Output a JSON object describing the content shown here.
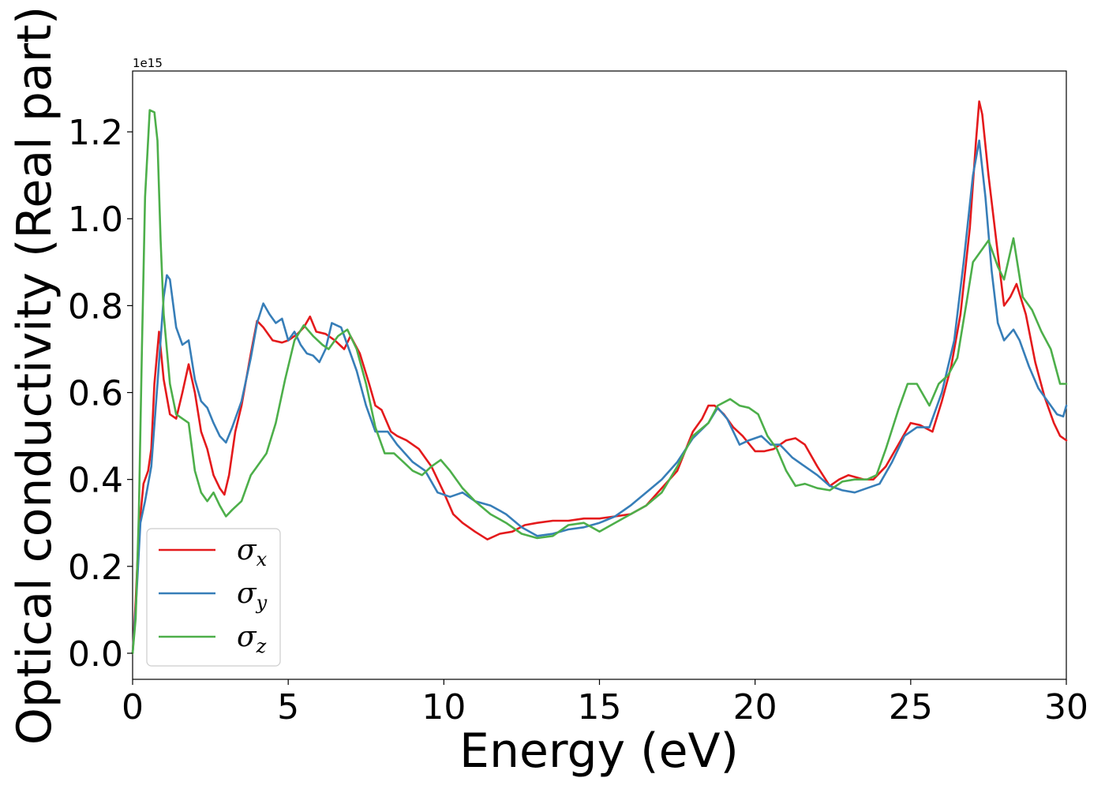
{
  "chart_data": {
    "type": "line",
    "xlabel": "Energy (eV)",
    "ylabel": "Optical conductivity (Real part)",
    "y_offset_label": "1e15",
    "xlim": [
      0,
      30
    ],
    "ylim": [
      -0.06,
      1.34
    ],
    "xticks": [
      0,
      5,
      10,
      15,
      20,
      25,
      30
    ],
    "yticks": [
      0.0,
      0.2,
      0.4,
      0.6,
      0.8,
      1.0,
      1.2
    ],
    "ytick_labels": [
      "0.0",
      "0.2",
      "0.4",
      "0.6",
      "0.8",
      "1.0",
      "1.2"
    ],
    "grid": false,
    "legend_position": "lower-left",
    "series": [
      {
        "name": "σx",
        "legend_symbol": "σ",
        "legend_subscript": "x",
        "color": "#e41a1c",
        "points": [
          [
            0,
            0.0
          ],
          [
            0.1,
            0.12
          ],
          [
            0.2,
            0.28
          ],
          [
            0.35,
            0.39
          ],
          [
            0.5,
            0.42
          ],
          [
            0.6,
            0.47
          ],
          [
            0.7,
            0.62
          ],
          [
            0.85,
            0.74
          ],
          [
            1.0,
            0.63
          ],
          [
            1.2,
            0.55
          ],
          [
            1.4,
            0.54
          ],
          [
            1.6,
            0.6
          ],
          [
            1.8,
            0.665
          ],
          [
            2.0,
            0.6
          ],
          [
            2.2,
            0.51
          ],
          [
            2.4,
            0.47
          ],
          [
            2.6,
            0.41
          ],
          [
            2.8,
            0.38
          ],
          [
            2.95,
            0.365
          ],
          [
            3.1,
            0.41
          ],
          [
            3.3,
            0.51
          ],
          [
            3.5,
            0.57
          ],
          [
            3.8,
            0.69
          ],
          [
            4.0,
            0.765
          ],
          [
            4.2,
            0.75
          ],
          [
            4.5,
            0.72
          ],
          [
            4.8,
            0.715
          ],
          [
            5.0,
            0.72
          ],
          [
            5.3,
            0.735
          ],
          [
            5.5,
            0.75
          ],
          [
            5.7,
            0.775
          ],
          [
            5.9,
            0.74
          ],
          [
            6.2,
            0.735
          ],
          [
            6.5,
            0.72
          ],
          [
            6.8,
            0.7
          ],
          [
            7.0,
            0.73
          ],
          [
            7.3,
            0.69
          ],
          [
            7.6,
            0.62
          ],
          [
            7.8,
            0.57
          ],
          [
            8.0,
            0.56
          ],
          [
            8.3,
            0.51
          ],
          [
            8.5,
            0.5
          ],
          [
            8.8,
            0.49
          ],
          [
            9.2,
            0.47
          ],
          [
            9.6,
            0.43
          ],
          [
            10.0,
            0.37
          ],
          [
            10.3,
            0.32
          ],
          [
            10.6,
            0.3
          ],
          [
            11.0,
            0.28
          ],
          [
            11.4,
            0.262
          ],
          [
            11.8,
            0.275
          ],
          [
            12.2,
            0.28
          ],
          [
            12.6,
            0.295
          ],
          [
            13.0,
            0.3
          ],
          [
            13.5,
            0.305
          ],
          [
            14.0,
            0.305
          ],
          [
            14.5,
            0.31
          ],
          [
            15.0,
            0.31
          ],
          [
            15.5,
            0.315
          ],
          [
            16.0,
            0.32
          ],
          [
            16.5,
            0.34
          ],
          [
            17.0,
            0.38
          ],
          [
            17.5,
            0.42
          ],
          [
            18.0,
            0.51
          ],
          [
            18.3,
            0.54
          ],
          [
            18.5,
            0.57
          ],
          [
            18.7,
            0.57
          ],
          [
            19.0,
            0.55
          ],
          [
            19.3,
            0.52
          ],
          [
            19.6,
            0.5
          ],
          [
            20.0,
            0.465
          ],
          [
            20.3,
            0.465
          ],
          [
            20.6,
            0.47
          ],
          [
            21.0,
            0.49
          ],
          [
            21.3,
            0.495
          ],
          [
            21.6,
            0.48
          ],
          [
            22.0,
            0.43
          ],
          [
            22.4,
            0.385
          ],
          [
            22.7,
            0.4
          ],
          [
            23.0,
            0.41
          ],
          [
            23.5,
            0.4
          ],
          [
            23.8,
            0.4
          ],
          [
            24.2,
            0.43
          ],
          [
            24.6,
            0.48
          ],
          [
            25.0,
            0.53
          ],
          [
            25.3,
            0.525
          ],
          [
            25.7,
            0.51
          ],
          [
            26.0,
            0.58
          ],
          [
            26.3,
            0.66
          ],
          [
            26.6,
            0.78
          ],
          [
            26.9,
            0.98
          ],
          [
            27.1,
            1.18
          ],
          [
            27.2,
            1.27
          ],
          [
            27.3,
            1.24
          ],
          [
            27.5,
            1.1
          ],
          [
            27.8,
            0.92
          ],
          [
            28.0,
            0.8
          ],
          [
            28.2,
            0.82
          ],
          [
            28.4,
            0.85
          ],
          [
            28.7,
            0.78
          ],
          [
            29.0,
            0.67
          ],
          [
            29.3,
            0.59
          ],
          [
            29.6,
            0.53
          ],
          [
            29.8,
            0.5
          ],
          [
            30.0,
            0.49
          ]
        ]
      },
      {
        "name": "σy",
        "legend_symbol": "σ",
        "legend_subscript": "y",
        "color": "#377eb8",
        "points": [
          [
            0,
            0.0
          ],
          [
            0.1,
            0.1
          ],
          [
            0.25,
            0.3
          ],
          [
            0.4,
            0.35
          ],
          [
            0.6,
            0.43
          ],
          [
            0.8,
            0.62
          ],
          [
            1.0,
            0.82
          ],
          [
            1.1,
            0.87
          ],
          [
            1.2,
            0.86
          ],
          [
            1.4,
            0.75
          ],
          [
            1.6,
            0.71
          ],
          [
            1.8,
            0.72
          ],
          [
            2.0,
            0.63
          ],
          [
            2.2,
            0.58
          ],
          [
            2.4,
            0.565
          ],
          [
            2.6,
            0.53
          ],
          [
            2.8,
            0.5
          ],
          [
            3.0,
            0.485
          ],
          [
            3.2,
            0.52
          ],
          [
            3.5,
            0.58
          ],
          [
            3.8,
            0.68
          ],
          [
            4.0,
            0.76
          ],
          [
            4.2,
            0.805
          ],
          [
            4.4,
            0.78
          ],
          [
            4.6,
            0.76
          ],
          [
            4.8,
            0.77
          ],
          [
            5.0,
            0.72
          ],
          [
            5.2,
            0.74
          ],
          [
            5.4,
            0.71
          ],
          [
            5.6,
            0.69
          ],
          [
            5.8,
            0.685
          ],
          [
            6.0,
            0.67
          ],
          [
            6.2,
            0.7
          ],
          [
            6.4,
            0.76
          ],
          [
            6.7,
            0.75
          ],
          [
            6.9,
            0.71
          ],
          [
            7.2,
            0.65
          ],
          [
            7.5,
            0.57
          ],
          [
            7.8,
            0.51
          ],
          [
            8.2,
            0.51
          ],
          [
            8.5,
            0.48
          ],
          [
            9.0,
            0.44
          ],
          [
            9.4,
            0.42
          ],
          [
            9.8,
            0.37
          ],
          [
            10.2,
            0.36
          ],
          [
            10.6,
            0.37
          ],
          [
            11.0,
            0.35
          ],
          [
            11.5,
            0.34
          ],
          [
            12.0,
            0.32
          ],
          [
            12.5,
            0.29
          ],
          [
            13.0,
            0.27
          ],
          [
            13.5,
            0.275
          ],
          [
            14.0,
            0.285
          ],
          [
            14.5,
            0.29
          ],
          [
            15.0,
            0.3
          ],
          [
            15.5,
            0.315
          ],
          [
            16.0,
            0.34
          ],
          [
            16.5,
            0.37
          ],
          [
            17.0,
            0.4
          ],
          [
            17.5,
            0.44
          ],
          [
            18.0,
            0.495
          ],
          [
            18.5,
            0.53
          ],
          [
            18.8,
            0.565
          ],
          [
            19.1,
            0.54
          ],
          [
            19.5,
            0.48
          ],
          [
            19.8,
            0.49
          ],
          [
            20.2,
            0.5
          ],
          [
            20.5,
            0.48
          ],
          [
            20.8,
            0.48
          ],
          [
            21.2,
            0.45
          ],
          [
            21.6,
            0.43
          ],
          [
            22.0,
            0.41
          ],
          [
            22.4,
            0.385
          ],
          [
            22.8,
            0.375
          ],
          [
            23.2,
            0.37
          ],
          [
            23.6,
            0.38
          ],
          [
            24.0,
            0.39
          ],
          [
            24.4,
            0.44
          ],
          [
            24.8,
            0.5
          ],
          [
            25.2,
            0.52
          ],
          [
            25.6,
            0.52
          ],
          [
            26.0,
            0.6
          ],
          [
            26.4,
            0.72
          ],
          [
            26.7,
            0.9
          ],
          [
            27.0,
            1.1
          ],
          [
            27.2,
            1.18
          ],
          [
            27.4,
            1.05
          ],
          [
            27.6,
            0.88
          ],
          [
            27.8,
            0.76
          ],
          [
            28.0,
            0.72
          ],
          [
            28.3,
            0.745
          ],
          [
            28.5,
            0.72
          ],
          [
            28.8,
            0.66
          ],
          [
            29.1,
            0.61
          ],
          [
            29.4,
            0.58
          ],
          [
            29.7,
            0.55
          ],
          [
            29.9,
            0.545
          ],
          [
            30.0,
            0.57
          ]
        ]
      },
      {
        "name": "σz",
        "legend_symbol": "σ",
        "legend_subscript": "z",
        "color": "#4daf4a",
        "points": [
          [
            0,
            0.0
          ],
          [
            0.1,
            0.08
          ],
          [
            0.2,
            0.32
          ],
          [
            0.3,
            0.7
          ],
          [
            0.4,
            1.05
          ],
          [
            0.55,
            1.25
          ],
          [
            0.7,
            1.245
          ],
          [
            0.8,
            1.18
          ],
          [
            0.9,
            0.95
          ],
          [
            1.0,
            0.78
          ],
          [
            1.2,
            0.62
          ],
          [
            1.4,
            0.55
          ],
          [
            1.6,
            0.54
          ],
          [
            1.8,
            0.53
          ],
          [
            2.0,
            0.42
          ],
          [
            2.2,
            0.37
          ],
          [
            2.4,
            0.35
          ],
          [
            2.6,
            0.37
          ],
          [
            2.8,
            0.34
          ],
          [
            3.0,
            0.315
          ],
          [
            3.2,
            0.33
          ],
          [
            3.5,
            0.35
          ],
          [
            3.8,
            0.41
          ],
          [
            4.0,
            0.43
          ],
          [
            4.3,
            0.46
          ],
          [
            4.6,
            0.53
          ],
          [
            4.9,
            0.63
          ],
          [
            5.2,
            0.72
          ],
          [
            5.5,
            0.755
          ],
          [
            5.8,
            0.73
          ],
          [
            6.1,
            0.71
          ],
          [
            6.3,
            0.7
          ],
          [
            6.6,
            0.73
          ],
          [
            6.9,
            0.745
          ],
          [
            7.2,
            0.7
          ],
          [
            7.5,
            0.62
          ],
          [
            7.8,
            0.52
          ],
          [
            8.1,
            0.46
          ],
          [
            8.4,
            0.46
          ],
          [
            8.7,
            0.44
          ],
          [
            9.0,
            0.42
          ],
          [
            9.3,
            0.41
          ],
          [
            9.6,
            0.43
          ],
          [
            9.9,
            0.445
          ],
          [
            10.2,
            0.42
          ],
          [
            10.6,
            0.38
          ],
          [
            11.0,
            0.35
          ],
          [
            11.5,
            0.32
          ],
          [
            12.0,
            0.3
          ],
          [
            12.5,
            0.275
          ],
          [
            13.0,
            0.265
          ],
          [
            13.5,
            0.27
          ],
          [
            14.0,
            0.295
          ],
          [
            14.5,
            0.3
          ],
          [
            15.0,
            0.28
          ],
          [
            15.5,
            0.3
          ],
          [
            16.0,
            0.32
          ],
          [
            16.5,
            0.34
          ],
          [
            17.0,
            0.37
          ],
          [
            17.5,
            0.43
          ],
          [
            18.0,
            0.5
          ],
          [
            18.5,
            0.53
          ],
          [
            18.8,
            0.57
          ],
          [
            19.2,
            0.585
          ],
          [
            19.5,
            0.57
          ],
          [
            19.8,
            0.565
          ],
          [
            20.1,
            0.55
          ],
          [
            20.4,
            0.5
          ],
          [
            20.7,
            0.47
          ],
          [
            21.0,
            0.42
          ],
          [
            21.3,
            0.385
          ],
          [
            21.6,
            0.39
          ],
          [
            22.0,
            0.38
          ],
          [
            22.4,
            0.375
          ],
          [
            22.8,
            0.395
          ],
          [
            23.2,
            0.4
          ],
          [
            23.6,
            0.4
          ],
          [
            23.9,
            0.41
          ],
          [
            24.2,
            0.47
          ],
          [
            24.6,
            0.56
          ],
          [
            24.9,
            0.62
          ],
          [
            25.2,
            0.62
          ],
          [
            25.6,
            0.57
          ],
          [
            25.9,
            0.62
          ],
          [
            26.2,
            0.64
          ],
          [
            26.5,
            0.68
          ],
          [
            26.8,
            0.81
          ],
          [
            27.0,
            0.9
          ],
          [
            27.2,
            0.92
          ],
          [
            27.5,
            0.95
          ],
          [
            27.8,
            0.89
          ],
          [
            28.0,
            0.86
          ],
          [
            28.3,
            0.955
          ],
          [
            28.6,
            0.82
          ],
          [
            28.9,
            0.79
          ],
          [
            29.2,
            0.74
          ],
          [
            29.5,
            0.7
          ],
          [
            29.8,
            0.62
          ],
          [
            30.0,
            0.62
          ]
        ]
      }
    ]
  }
}
